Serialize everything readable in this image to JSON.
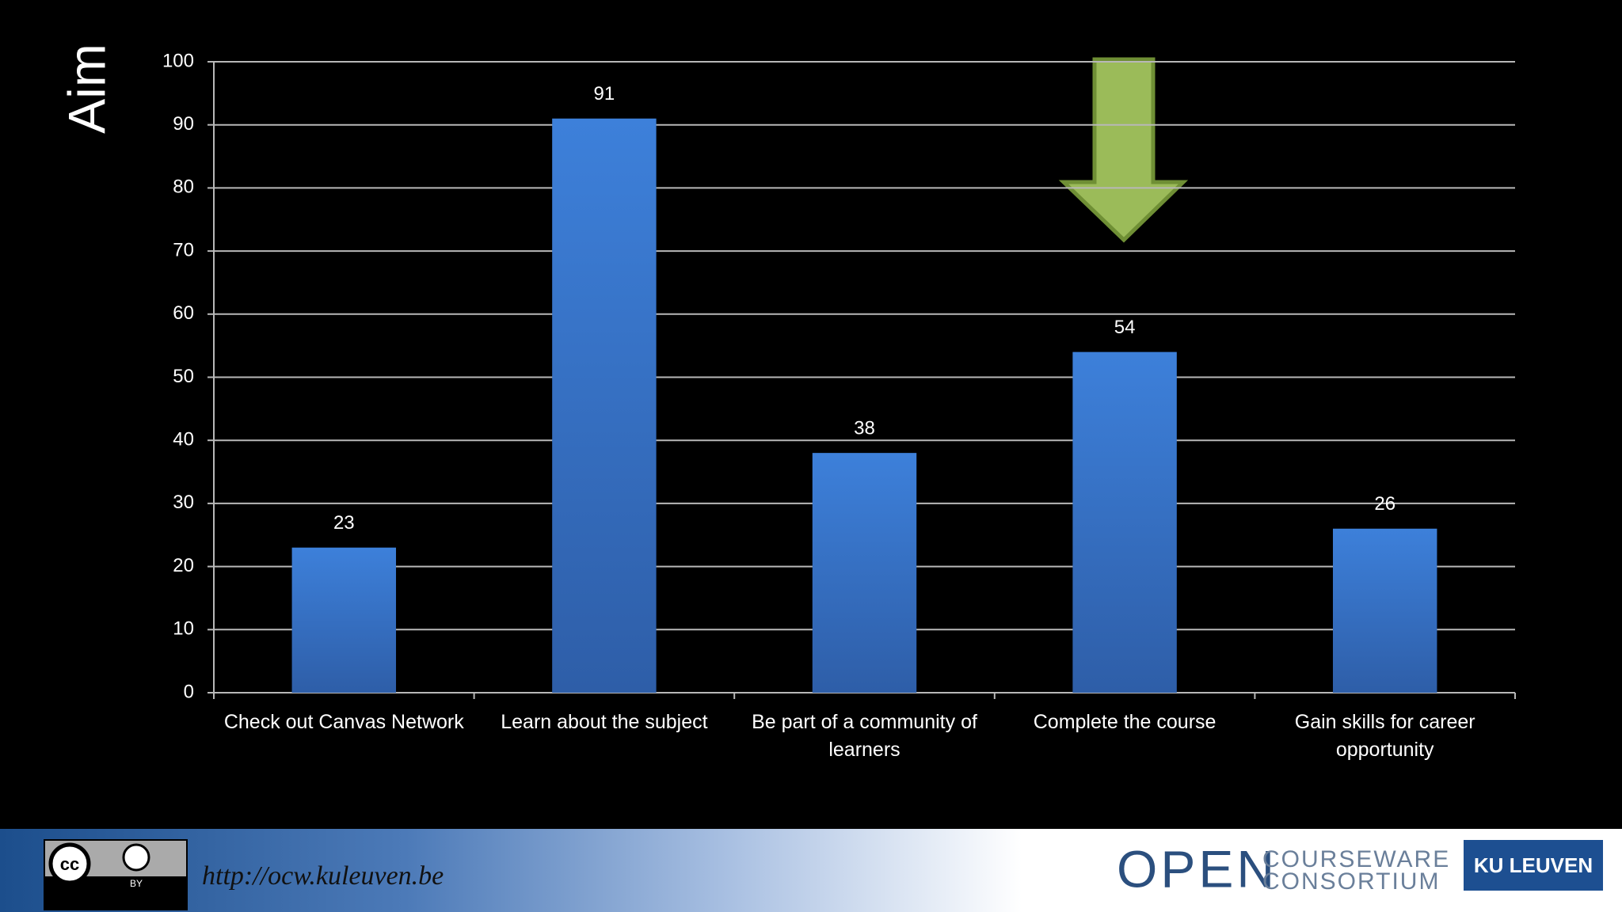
{
  "chart_data": {
    "type": "bar",
    "title": "Aim",
    "categories": [
      "Check out Canvas Network",
      "Learn about the subject",
      "Be part of a community of learners",
      "Complete the course",
      "Gain skills for career opportunity"
    ],
    "values": [
      23,
      91,
      38,
      54,
      26
    ],
    "color": "#3a78d0",
    "ylim": [
      0,
      100
    ],
    "yticks": [
      0,
      10,
      20,
      30,
      40,
      50,
      60,
      70,
      80,
      90,
      100
    ],
    "grid": true
  },
  "footer": {
    "license": "BY",
    "url": "http://ocw.kuleuven.be",
    "open": "OPEN",
    "courseware": "COURSEWARE",
    "consortium": "CONSORTIUM",
    "university": "KU LEUVEN"
  }
}
